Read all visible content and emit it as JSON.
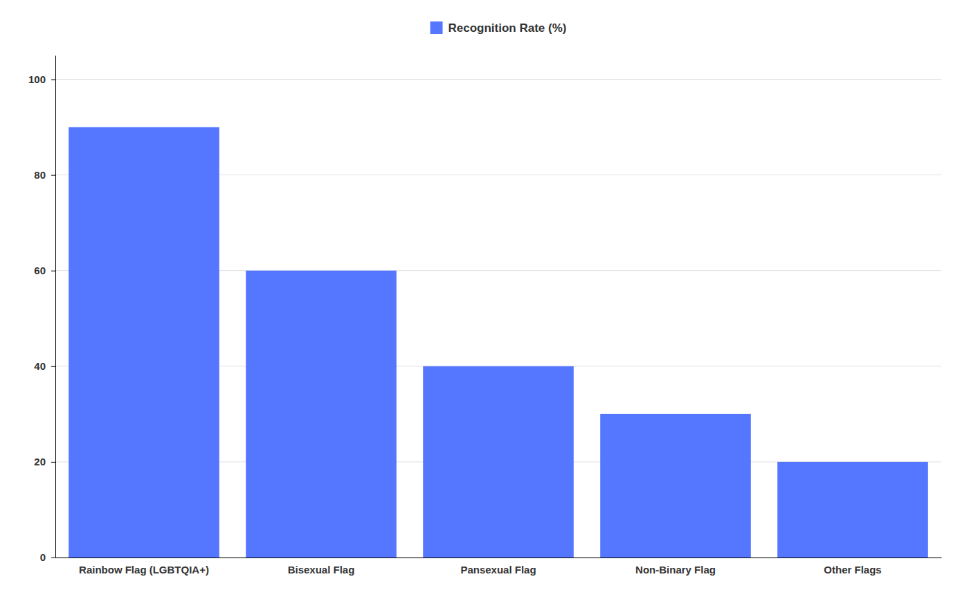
{
  "chart_data": {
    "type": "bar",
    "categories": [
      "Rainbow Flag (LGBTQIA+)",
      "Bisexual Flag",
      "Pansexual Flag",
      "Non-Binary Flag",
      "Other Flags"
    ],
    "series": [
      {
        "name": "Recognition Rate (%)",
        "color": "#5577FF",
        "values": [
          90,
          60,
          40,
          30,
          20
        ]
      }
    ],
    "ylim": [
      0,
      105
    ],
    "yticks": [
      0,
      20,
      40,
      60,
      80,
      100
    ],
    "grid": true,
    "legend": "top"
  }
}
